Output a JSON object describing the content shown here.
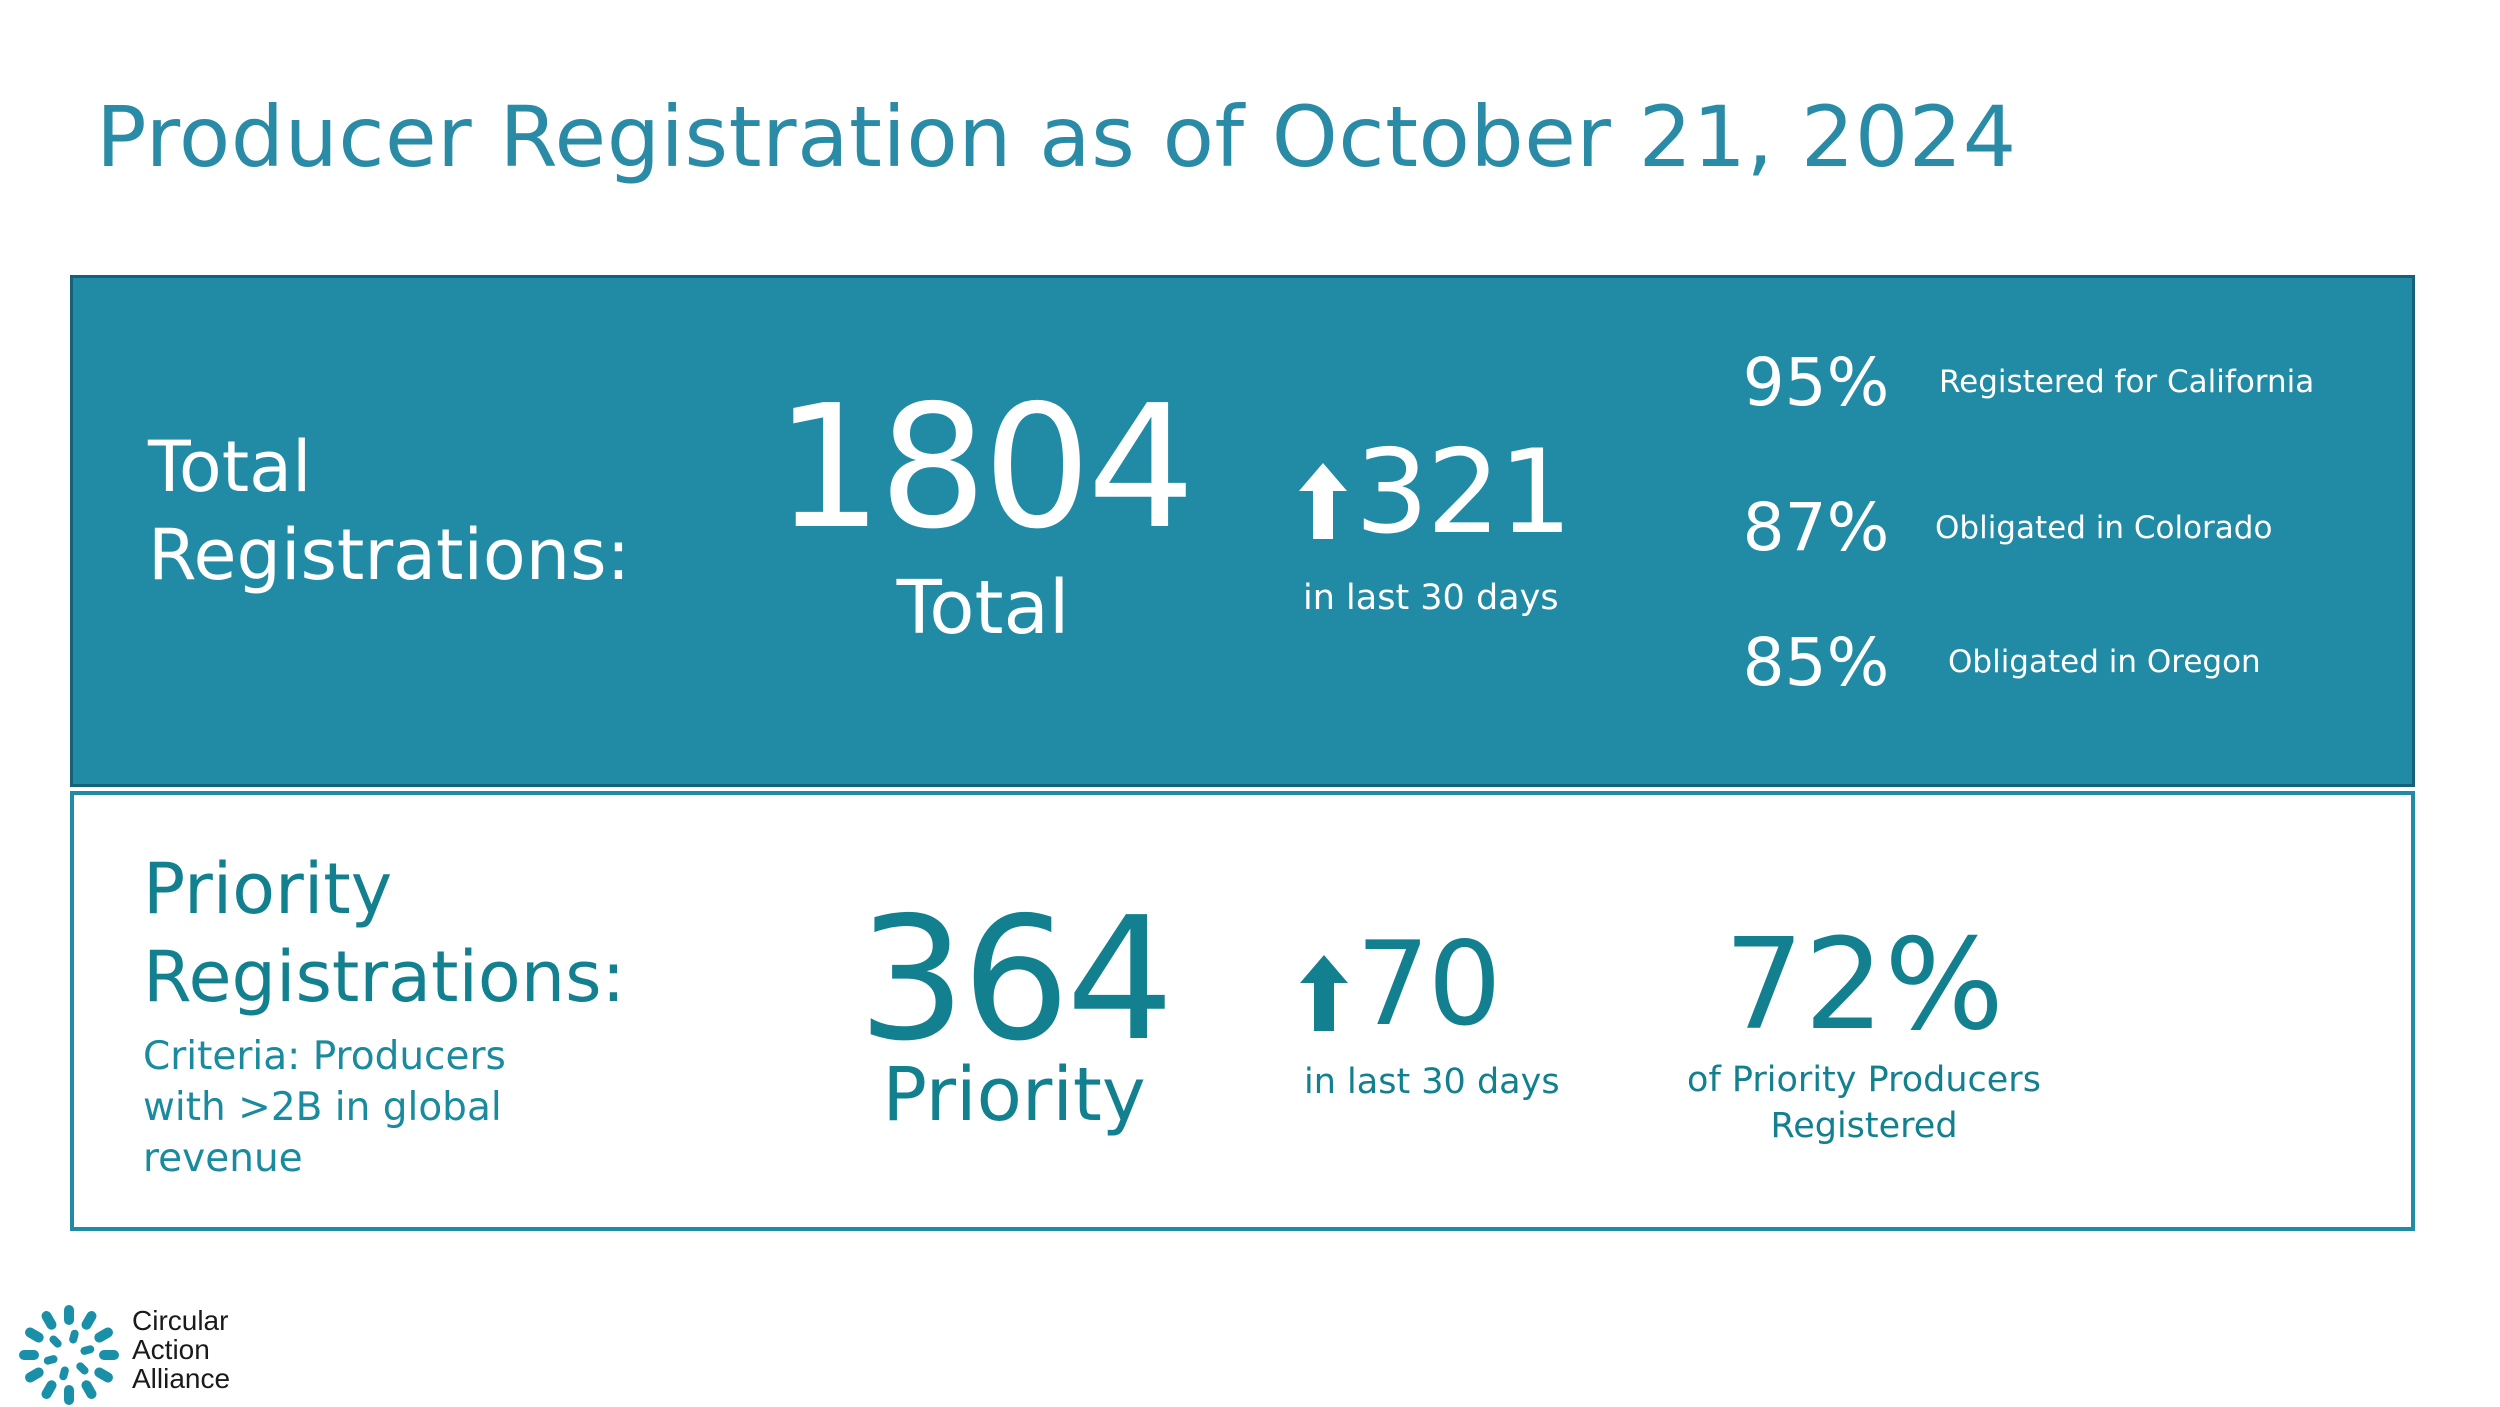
{
  "slide": {
    "title": "Producer Registration as of October 21, 2024"
  },
  "total": {
    "label": "Total Registrations:",
    "count": "1804",
    "count_caption": "Total",
    "increase": "321",
    "increase_caption": "in last 30 days",
    "stats": [
      {
        "percent": "95%",
        "label": "Registered for California"
      },
      {
        "percent": "87%",
        "label": "Obligated in Colorado"
      },
      {
        "percent": "85%",
        "label": "Obligated in Oregon"
      }
    ]
  },
  "priority": {
    "label": "Priority Registrations:",
    "criteria": "Criteria: Producers with >2B in global revenue",
    "count": "364",
    "count_caption": "Priority",
    "increase": "70",
    "increase_caption": "in last 30 days",
    "percent": "72%",
    "percent_caption": "of Priority Producers Registered"
  },
  "logo": {
    "line1": "Circular",
    "line2": "Action",
    "line3": "Alliance",
    "icon": "circular-burst-icon"
  },
  "colors": {
    "title": "#2a8ba6",
    "panel_fill": "#218ba6",
    "priority_text": "#13808f"
  }
}
